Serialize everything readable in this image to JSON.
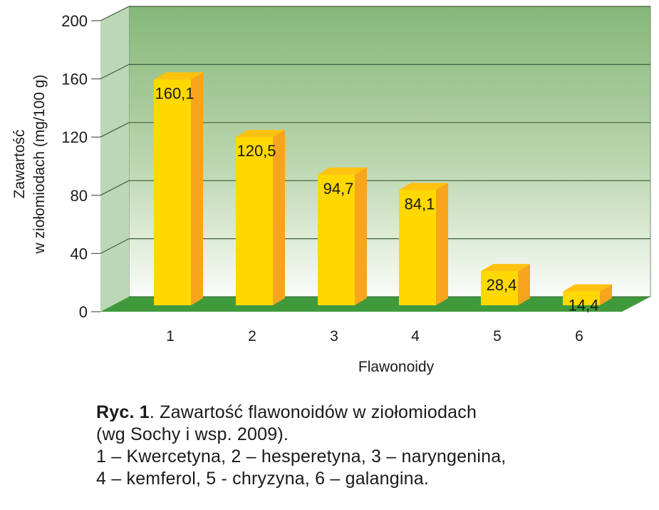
{
  "chart_data": {
    "type": "bar",
    "style": "3d",
    "categories": [
      "1",
      "2",
      "3",
      "4",
      "5",
      "6"
    ],
    "values": [
      160.1,
      120.5,
      94.7,
      84.1,
      28.4,
      14.4
    ],
    "value_labels": [
      "160,1",
      "120,5",
      "94,7",
      "84,1",
      "28,4",
      "14,4"
    ],
    "title": "",
    "xlabel": "Flawonoidy",
    "ylabel_lines": [
      "Zawartość",
      "w ziołomiodach (mg/100 g)"
    ],
    "ylim": [
      0,
      200
    ],
    "yticks": [
      0,
      40,
      80,
      120,
      160,
      200
    ],
    "ytick_labels": [
      "0",
      "40",
      "80",
      "120",
      "160",
      "200"
    ],
    "grid": true,
    "legend": null,
    "category_names": {
      "1": "Kwercetyna",
      "2": "hesperetyna",
      "3": "naryngenina",
      "4": "kemferol",
      "5": "chryzyna",
      "6": "galangina"
    }
  },
  "colors": {
    "bar_front": "#FFD800",
    "bar_side": "#F7A51C",
    "bar_top": "#FFC20E",
    "floor": "#3F9A3B",
    "wall_top": "#86B77A",
    "wall_bottom": "#F6F9F4",
    "side_wall": "#BCD7B6",
    "grid_line": "#3E5E3A",
    "axis_line": "#555555"
  },
  "caption": {
    "label": "Ryc. 1",
    "line1_rest": ". Zawartość flawonoidów w ziołomiodach",
    "line2": "(wg Sochy i wsp. 2009).",
    "line3": "1 – Kwercetyna, 2 – hesperetyna, 3 – naryngenina,",
    "line4": "4 – kemferol, 5 - chryzyna, 6 – galangina."
  }
}
